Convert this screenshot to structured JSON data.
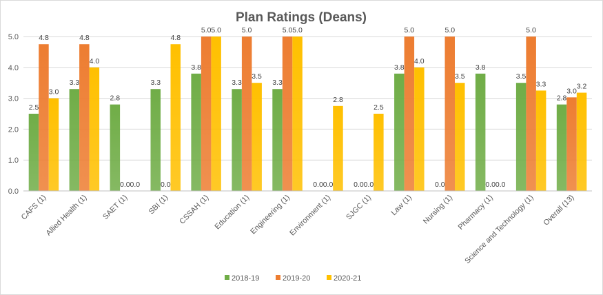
{
  "chart_data": {
    "type": "bar",
    "title": "Plan Ratings (Deans)",
    "xlabel": "",
    "ylabel": "",
    "ylim": [
      0,
      5
    ],
    "yticks": [
      "0.0",
      "1.0",
      "2.0",
      "3.0",
      "4.0",
      "5.0"
    ],
    "grid": true,
    "legend_position": "bottom",
    "categories": [
      "CAFS (1)",
      "Allied Health (1)",
      "SAET (1)",
      "SBI (1)",
      "CSSAH (1)",
      "Education (1)",
      "Engineering (1)",
      "Environment (1)",
      "SJGC (1)",
      "Law (1)",
      "Nursing (1)",
      "Pharmacy (1)",
      "Science and Technology (1)",
      "Overall (13)"
    ],
    "series": [
      {
        "name": "2018-19",
        "color": "#70ad47",
        "values": [
          2.5,
          3.3,
          2.8,
          3.3,
          3.8,
          3.3,
          3.3,
          0.0,
          0.0,
          3.8,
          0.0,
          3.8,
          3.5,
          2.8
        ],
        "labels": [
          "2.5",
          "3.3",
          "2.8",
          "3.3",
          "3.8",
          "3.3",
          "3.3",
          "0.0",
          "0.0",
          "3.8",
          "0.0",
          "3.8",
          "3.5",
          "2.8"
        ]
      },
      {
        "name": "2019-20",
        "color": "#ed7d31",
        "values": [
          4.75,
          4.75,
          0.0,
          0.0,
          5.0,
          5.0,
          5.0,
          0.0,
          0.0,
          5.0,
          5.0,
          0.0,
          5.0,
          3.03
        ],
        "labels": [
          "4.8",
          "4.8",
          "0.0",
          "0.0",
          "5.0",
          "5.0",
          "5.0",
          "0.0",
          "0.0",
          "5.0",
          "5.0",
          "0.0",
          "5.0",
          "3.0"
        ]
      },
      {
        "name": "2020-21",
        "color": "#ffc000",
        "values": [
          3.0,
          4.0,
          0.0,
          4.75,
          5.0,
          3.5,
          5.0,
          2.75,
          2.5,
          4.0,
          3.5,
          0.0,
          3.25,
          3.18
        ],
        "labels": [
          "3.0",
          "4.0",
          "0.0",
          "4.8",
          "5.0",
          "3.5",
          "5.0",
          "2.8",
          "2.5",
          "4.0",
          "3.5",
          "0.0",
          "3.3",
          "3.2"
        ]
      }
    ]
  }
}
